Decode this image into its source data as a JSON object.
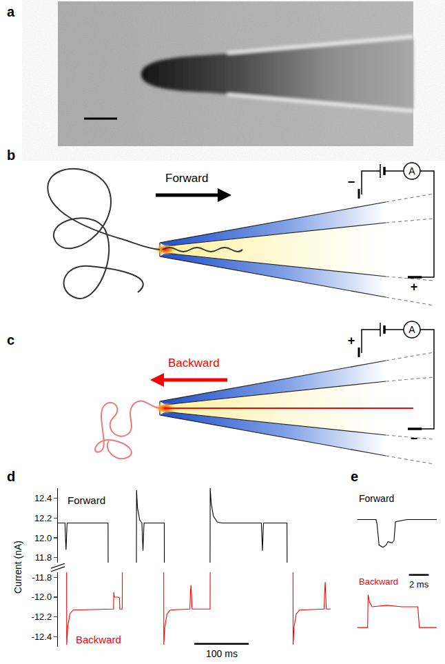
{
  "panel_a": {
    "label": "a"
  },
  "panel_b": {
    "label": "b",
    "direction": "Forward",
    "color": "#000000",
    "electrode_left": "−",
    "electrode_right": "+",
    "meter": "A"
  },
  "panel_c": {
    "label": "c",
    "direction": "Backward",
    "color": "#ff0000",
    "electrode_left": "+",
    "electrode_right": "−",
    "meter": "A"
  },
  "chart_data": [
    {
      "label": "d",
      "type": "line",
      "y_label": "Current (nA)",
      "tick_labels": "y",
      "xlim": [
        0,
        500
      ],
      "ylim": [
        11.75,
        12.5
      ],
      "yticks": [
        11.8,
        {
          "value": 12,
          "label": "12.0"
        },
        12.2,
        12.4
      ],
      "y2lim": [
        -12.5,
        -11.75
      ],
      "y2ticks": [
        -11.8,
        {
          "value": -12,
          "label": "-12.0"
        },
        -12.2,
        -12.4
      ],
      "scale_bar": {
        "value": 100,
        "label": "100 ms"
      },
      "series": [
        {
          "name": "Forward",
          "color": "#000000",
          "x": [
            0,
            13,
            14,
            15,
            16.5,
            17,
            92,
            92.2,
            null,
            144,
            144.2,
            146,
            150,
            154,
            155,
            156,
            157.5,
            158,
            195,
            195.2,
            null,
            279,
            279.2,
            281,
            285,
            292,
            300,
            373,
            374,
            375,
            376.5,
            377,
            420,
            420.2
          ],
          "values": [
            12.15,
            12.15,
            12.0,
            11.88,
            12.1,
            12.15,
            12.15,
            11.75,
            null,
            11.75,
            12.48,
            12.3,
            12.18,
            12.15,
            11.98,
            11.87,
            12.1,
            12.15,
            12.15,
            11.75,
            null,
            11.75,
            12.5,
            12.35,
            12.22,
            12.16,
            12.15,
            12.15,
            12.0,
            11.87,
            12.1,
            12.15,
            12.15,
            11.75
          ]
        },
        {
          "name": "Backward",
          "color": "#ff0000",
          "axis": "y2",
          "x": [
            16,
            16.2,
            18,
            22,
            28,
            100,
            102,
            102.5,
            103.5,
            110,
            113,
            113.5,
            118,
            118.2,
            null,
            194,
            194.2,
            196,
            200,
            206,
            242,
            243,
            244,
            245.5,
            246,
            279,
            279.2,
            null,
            431,
            431.2,
            433,
            437,
            443,
            488,
            489,
            490,
            491.5,
            492,
            500
          ],
          "values": [
            -11.75,
            -12.48,
            -12.3,
            -12.17,
            -12.13,
            -12.12,
            -12.12,
            -11.95,
            -12.0,
            -12.0,
            -12.01,
            -12.12,
            -12.12,
            -11.75,
            null,
            -11.75,
            -12.48,
            -12.3,
            -12.17,
            -12.13,
            -12.12,
            -11.95,
            -11.88,
            -12.05,
            -12.12,
            -12.12,
            -11.75,
            null,
            -11.75,
            -12.48,
            -12.3,
            -12.17,
            -12.13,
            -12.12,
            -11.95,
            -11.85,
            -12.05,
            -12.12,
            -12.12
          ]
        }
      ]
    },
    {
      "label": "e",
      "type": "line",
      "tick_labels": false,
      "xlim": [
        0,
        8
      ],
      "ylim": [
        11.8,
        12.4
      ],
      "y2lim": [
        -12.35,
        -11.9
      ],
      "scale_bar": {
        "value": 2,
        "label": "2 ms"
      },
      "series": [
        {
          "name": "Forward",
          "color": "#000000",
          "x": [
            0,
            1.9,
            2.0,
            2.2,
            2.6,
            2.9,
            3.1,
            3.5,
            3.7,
            3.85,
            5,
            8
          ],
          "values": [
            12.16,
            12.16,
            12.12,
            11.93,
            11.91,
            11.93,
            11.96,
            11.95,
            11.97,
            12.14,
            12.16,
            12.16
          ]
        },
        {
          "name": "Backward",
          "color": "#ff0000",
          "axis": "y2",
          "x": [
            0,
            1.05,
            1.1,
            1.25,
            1.5,
            3,
            4.5,
            6.1,
            6.25,
            8
          ],
          "values": [
            -12.22,
            -12.22,
            -12.0,
            -12.05,
            -12.08,
            -12.07,
            -12.08,
            -12.08,
            -12.22,
            -12.22
          ]
        }
      ]
    }
  ]
}
